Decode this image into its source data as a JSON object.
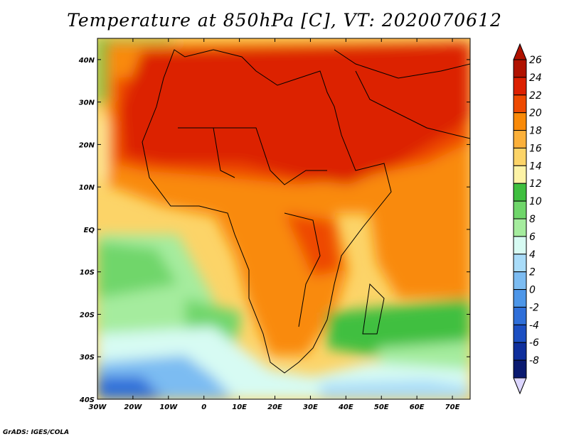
{
  "title": "Temperature at 850hPa [C], VT: 2020070612",
  "credit": "GrADS: IGES/COLA",
  "map": {
    "lon_range": [
      -30,
      75
    ],
    "lat_range": [
      -40,
      45
    ],
    "lon_ticks": [
      {
        "value": -30,
        "label": "30W"
      },
      {
        "value": -20,
        "label": "20W"
      },
      {
        "value": -10,
        "label": "10W"
      },
      {
        "value": 0,
        "label": "0"
      },
      {
        "value": 10,
        "label": "10E"
      },
      {
        "value": 20,
        "label": "20E"
      },
      {
        "value": 30,
        "label": "30E"
      },
      {
        "value": 40,
        "label": "40E"
      },
      {
        "value": 50,
        "label": "50E"
      },
      {
        "value": 60,
        "label": "60E"
      },
      {
        "value": 70,
        "label": "70E"
      }
    ],
    "lat_ticks": [
      {
        "value": 40,
        "label": "40N"
      },
      {
        "value": 30,
        "label": "30N"
      },
      {
        "value": 20,
        "label": "20N"
      },
      {
        "value": 10,
        "label": "10N"
      },
      {
        "value": 0,
        "label": "EQ"
      },
      {
        "value": -10,
        "label": "10S"
      },
      {
        "value": -20,
        "label": "20S"
      },
      {
        "value": -30,
        "label": "30S"
      },
      {
        "value": -40,
        "label": "40S"
      }
    ]
  },
  "colorbar": {
    "levels": [
      {
        "label": "26",
        "color": "#b01200"
      },
      {
        "label": "24",
        "color": "#dc2000"
      },
      {
        "label": "22",
        "color": "#ee4a00"
      },
      {
        "label": "20",
        "color": "#f98a08"
      },
      {
        "label": "18",
        "color": "#fbb03a"
      },
      {
        "label": "16",
        "color": "#fcd468"
      },
      {
        "label": "14",
        "color": "#fdf3a6"
      },
      {
        "label": "12",
        "color": "#3fbf3f"
      },
      {
        "label": "10",
        "color": "#6fd66a"
      },
      {
        "label": "8",
        "color": "#a5ec9e"
      },
      {
        "label": "6",
        "color": "#d7fbf3"
      },
      {
        "label": "4",
        "color": "#a9dcf9"
      },
      {
        "label": "2",
        "color": "#7cbcf2"
      },
      {
        "label": "0",
        "color": "#4d96e8"
      },
      {
        "label": "-2",
        "color": "#2f6fd9"
      },
      {
        "label": "-4",
        "color": "#1c4fc2"
      },
      {
        "label": "-6",
        "color": "#0f2f9c"
      },
      {
        "label": "-8",
        "color": "#0a1a70"
      }
    ],
    "top_arrow_color": "#b01200",
    "bottom_arrow_color": "#dcd6ff"
  }
}
